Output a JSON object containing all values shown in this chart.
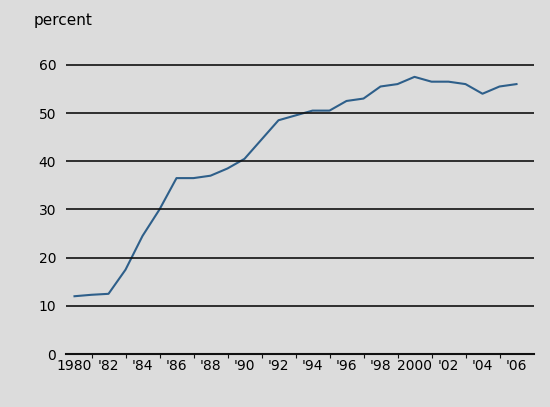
{
  "years": [
    1980,
    1981,
    1982,
    1983,
    1984,
    1985,
    1986,
    1987,
    1988,
    1989,
    1990,
    1991,
    1992,
    1993,
    1994,
    1995,
    1996,
    1997,
    1998,
    1999,
    2000,
    2001,
    2002,
    2003,
    2004,
    2005,
    2006
  ],
  "values": [
    12.0,
    12.3,
    12.5,
    17.5,
    24.5,
    30.0,
    36.5,
    36.5,
    37.0,
    38.5,
    40.5,
    44.5,
    48.5,
    49.5,
    50.5,
    50.5,
    52.5,
    53.0,
    55.5,
    56.0,
    57.5,
    56.5,
    56.5,
    56.0,
    54.0,
    55.5,
    56.0
  ],
  "line_color": "#2e5f8a",
  "line_width": 1.5,
  "background_color": "#dcdcdc",
  "ylabel": "percent",
  "ylim": [
    0,
    65
  ],
  "xlim": [
    1979.5,
    2007.0
  ],
  "yticks": [
    0,
    10,
    20,
    30,
    40,
    50,
    60
  ],
  "xtick_labels": [
    "1980",
    "'82",
    "'84",
    "'86",
    "'88",
    "'90",
    "'92",
    "'94",
    "'96",
    "'98",
    "2000",
    "'02",
    "'04",
    "'06"
  ],
  "xtick_positions": [
    1980,
    1982,
    1984,
    1986,
    1988,
    1990,
    1992,
    1994,
    1996,
    1998,
    2000,
    2002,
    2004,
    2006
  ],
  "grid_color": "#111111",
  "grid_linewidth": 1.2,
  "bottom_spine_color": "#111111",
  "bottom_spine_linewidth": 1.5,
  "ylabel_fontsize": 11,
  "tick_fontsize": 10
}
